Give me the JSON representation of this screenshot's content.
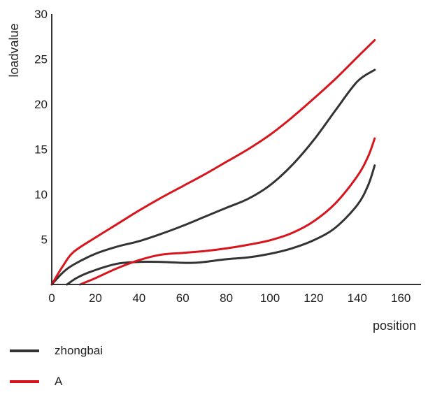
{
  "chart_data": {
    "type": "line",
    "title": "",
    "xlabel": "position",
    "ylabel": "loadvalue",
    "xlim": [
      0,
      170
    ],
    "ylim": [
      0,
      30
    ],
    "xticks": [
      0,
      20,
      40,
      60,
      80,
      100,
      120,
      140,
      160
    ],
    "yticks": [
      5,
      10,
      15,
      20,
      25,
      30
    ],
    "x_tick_labels": [
      "0",
      "20",
      "40",
      "60",
      "80",
      "100",
      "120",
      "140",
      "160"
    ],
    "y_tick_labels": [
      "5",
      "10",
      "15",
      "20",
      "25",
      "30"
    ],
    "grid": false,
    "legend_position": "bottom-left",
    "series": [
      {
        "name": "zhongbai",
        "group": "zhongbai",
        "color": "#333333",
        "x": [
          0,
          5,
          10,
          20,
          30,
          40,
          50,
          60,
          70,
          80,
          90,
          100,
          110,
          120,
          130,
          140,
          148
        ],
        "y": [
          0,
          1.3,
          2.2,
          3.4,
          4.2,
          4.8,
          5.6,
          6.5,
          7.5,
          8.5,
          9.5,
          11.0,
          13.2,
          16.0,
          19.3,
          22.5,
          23.8
        ]
      },
      {
        "name": "zhongbai",
        "group": "zhongbai",
        "color": "#333333",
        "x": [
          7,
          12,
          20,
          30,
          40,
          50,
          60,
          65,
          70,
          80,
          90,
          100,
          110,
          120,
          130,
          140,
          145,
          148
        ],
        "y": [
          0,
          0.8,
          1.6,
          2.3,
          2.5,
          2.5,
          2.4,
          2.4,
          2.5,
          2.8,
          3.0,
          3.4,
          4.0,
          4.9,
          6.3,
          8.8,
          11.0,
          13.2
        ]
      },
      {
        "name": "A",
        "group": "A",
        "color": "#d8141c",
        "x": [
          0,
          5,
          10,
          20,
          30,
          40,
          50,
          60,
          70,
          80,
          90,
          100,
          110,
          120,
          130,
          140,
          148
        ],
        "y": [
          0,
          2.0,
          3.6,
          5.2,
          6.7,
          8.2,
          9.6,
          10.9,
          12.2,
          13.6,
          15.0,
          16.6,
          18.5,
          20.6,
          22.8,
          25.2,
          27.1
        ]
      },
      {
        "name": "A",
        "group": "A",
        "color": "#d8141c",
        "x": [
          13,
          20,
          30,
          40,
          50,
          60,
          70,
          80,
          90,
          100,
          110,
          120,
          130,
          140,
          145,
          148
        ],
        "y": [
          0,
          0.7,
          1.8,
          2.7,
          3.3,
          3.5,
          3.7,
          4.0,
          4.4,
          4.9,
          5.7,
          7.0,
          9.0,
          12.0,
          14.2,
          16.2
        ]
      }
    ],
    "legend": [
      {
        "label": "zhongbai",
        "color": "#333333"
      },
      {
        "label": "A",
        "color": "#d8141c"
      }
    ]
  }
}
